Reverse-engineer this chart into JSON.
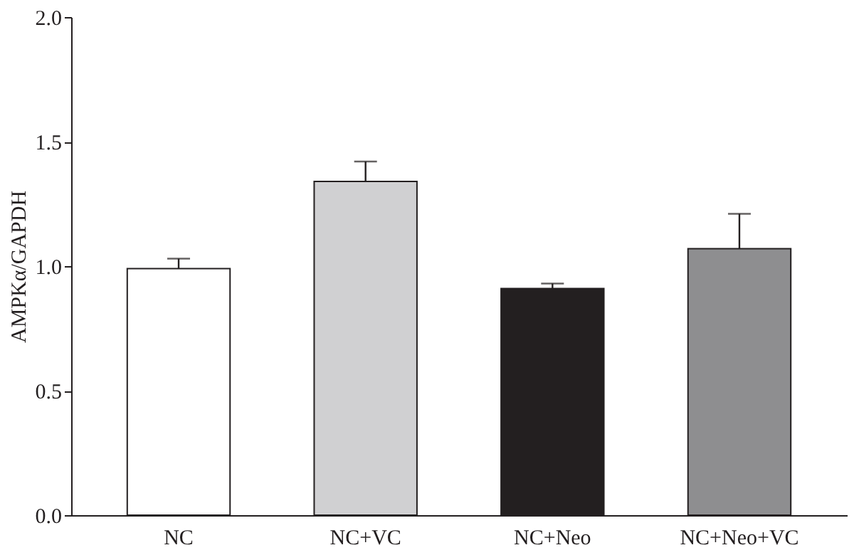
{
  "chart_data": {
    "type": "bar",
    "ylabel": "AMPKα/GAPDH",
    "categories": [
      "NC",
      "NC+VC",
      "NC+Neo",
      "NC+Neo+VC"
    ],
    "values": [
      0.99,
      1.34,
      0.91,
      1.07
    ],
    "colors": [
      "#ffffff",
      "#d0d0d2",
      "#231f20",
      "#8e8e90"
    ],
    "errors": [
      [
        0.99,
        1.03
      ],
      [
        1.34,
        1.42
      ],
      [
        0.91,
        0.93
      ],
      [
        1.07,
        1.21
      ]
    ],
    "ylim": [
      0,
      2
    ],
    "yticks": [
      {
        "value": 0,
        "label": "0.0"
      },
      {
        "value": 0.5,
        "label": "0.5"
      },
      {
        "value": 1,
        "label": "1.0"
      },
      {
        "value": 1.5,
        "label": "1.5"
      },
      {
        "value": 2,
        "label": "2.0"
      }
    ],
    "grid": false
  }
}
